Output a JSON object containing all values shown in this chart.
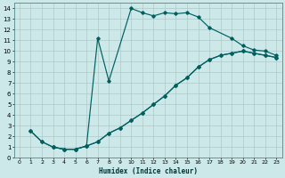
{
  "xlabel": "Humidex (Indice chaleur)",
  "bg_color": "#cce8e8",
  "grid_color": "#b0c8c8",
  "line_color": "#006060",
  "xlim": [
    -0.5,
    23.5
  ],
  "ylim": [
    0,
    14.5
  ],
  "xticks": [
    0,
    1,
    2,
    3,
    4,
    5,
    6,
    7,
    8,
    9,
    10,
    11,
    12,
    13,
    14,
    15,
    16,
    17,
    18,
    19,
    20,
    21,
    22,
    23
  ],
  "yticks": [
    0,
    1,
    2,
    3,
    4,
    5,
    6,
    7,
    8,
    9,
    10,
    11,
    12,
    13,
    14
  ],
  "line1_x": [
    1,
    2,
    3,
    4,
    5,
    6,
    7,
    8,
    10,
    11,
    12,
    13,
    14,
    15,
    16,
    17,
    19,
    20,
    21,
    22,
    23
  ],
  "line1_y": [
    2.5,
    1.5,
    1.0,
    0.8,
    0.8,
    1.1,
    11.2,
    7.2,
    14.0,
    13.6,
    13.3,
    13.6,
    13.5,
    13.6,
    13.2,
    12.2,
    11.2,
    10.5,
    10.1,
    10.0,
    9.6
  ],
  "line2_x": [
    1,
    2,
    3,
    4,
    5,
    6,
    7,
    8,
    9,
    10,
    11,
    12,
    13,
    14,
    15,
    16,
    17,
    18,
    19,
    20,
    21,
    22,
    23
  ],
  "line2_y": [
    2.5,
    1.5,
    1.0,
    0.8,
    0.8,
    1.1,
    1.5,
    2.3,
    2.8,
    3.5,
    4.2,
    5.0,
    5.8,
    6.8,
    7.5,
    8.5,
    9.2,
    9.6,
    9.8,
    10.0,
    9.8,
    9.6,
    9.4
  ],
  "line3_x": [
    3,
    4,
    5,
    6,
    7,
    8,
    9,
    10,
    11,
    12,
    13,
    14,
    15,
    16,
    17,
    18,
    19,
    20,
    21,
    22,
    23
  ],
  "line3_y": [
    1.0,
    0.8,
    0.8,
    1.1,
    1.5,
    2.3,
    2.8,
    3.5,
    4.2,
    5.0,
    5.8,
    6.8,
    7.5,
    8.5,
    9.2,
    9.6,
    9.8,
    10.0,
    9.8,
    9.6,
    9.4
  ]
}
